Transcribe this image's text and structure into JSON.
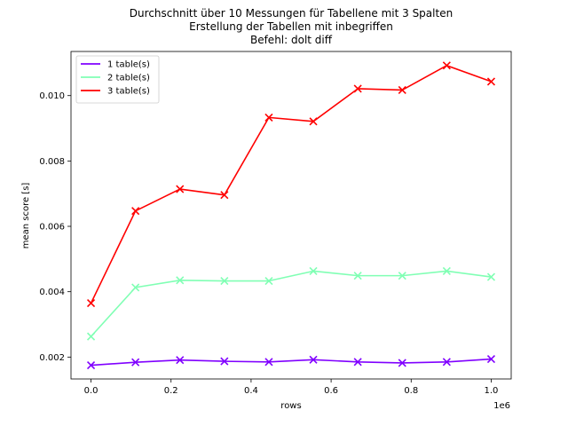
{
  "chart_data": {
    "type": "line",
    "title_lines": [
      "Durchschnitt über 10 Messungen für Tabellene mit 3 Spalten",
      "Erstellung der Tabellen mit inbegriffen",
      "Befehl: dolt diff"
    ],
    "xlabel": "rows",
    "ylabel": "mean score [s]",
    "x_offset_label": "1e6",
    "x_scale": 1000000,
    "xlim": [
      -50000,
      1050000
    ],
    "ylim": [
      0.00133,
      0.01135
    ],
    "x_ticks": [
      0,
      200000,
      400000,
      600000,
      800000,
      1000000
    ],
    "x_tick_labels": [
      "0.0",
      "0.2",
      "0.4",
      "0.6",
      "0.8",
      "1.0"
    ],
    "y_ticks": [
      0.002,
      0.004,
      0.006,
      0.008,
      0.01
    ],
    "y_tick_labels": [
      "0.002",
      "0.004",
      "0.006",
      "0.008",
      "0.010"
    ],
    "grid": false,
    "legend_position": "top-left",
    "marker": "x",
    "x": [
      1,
      111112,
      222223,
      333334,
      444445,
      555556,
      666667,
      777778,
      888889,
      1000000
    ],
    "series": [
      {
        "name": "1 table(s)",
        "color": "#8000ff",
        "values": [
          0.00175,
          0.00184,
          0.00191,
          0.00187,
          0.00185,
          0.00192,
          0.00185,
          0.00182,
          0.00185,
          0.00194
        ]
      },
      {
        "name": "2 table(s)",
        "color": "#80ffb4",
        "values": [
          0.00263,
          0.00413,
          0.00435,
          0.00433,
          0.00433,
          0.00463,
          0.00449,
          0.00449,
          0.00463,
          0.00445
        ]
      },
      {
        "name": "3 table(s)",
        "color": "#ff0000",
        "values": [
          0.00365,
          0.00647,
          0.00714,
          0.00696,
          0.00933,
          0.00921,
          0.01021,
          0.01017,
          0.01092,
          0.01043
        ]
      }
    ]
  }
}
